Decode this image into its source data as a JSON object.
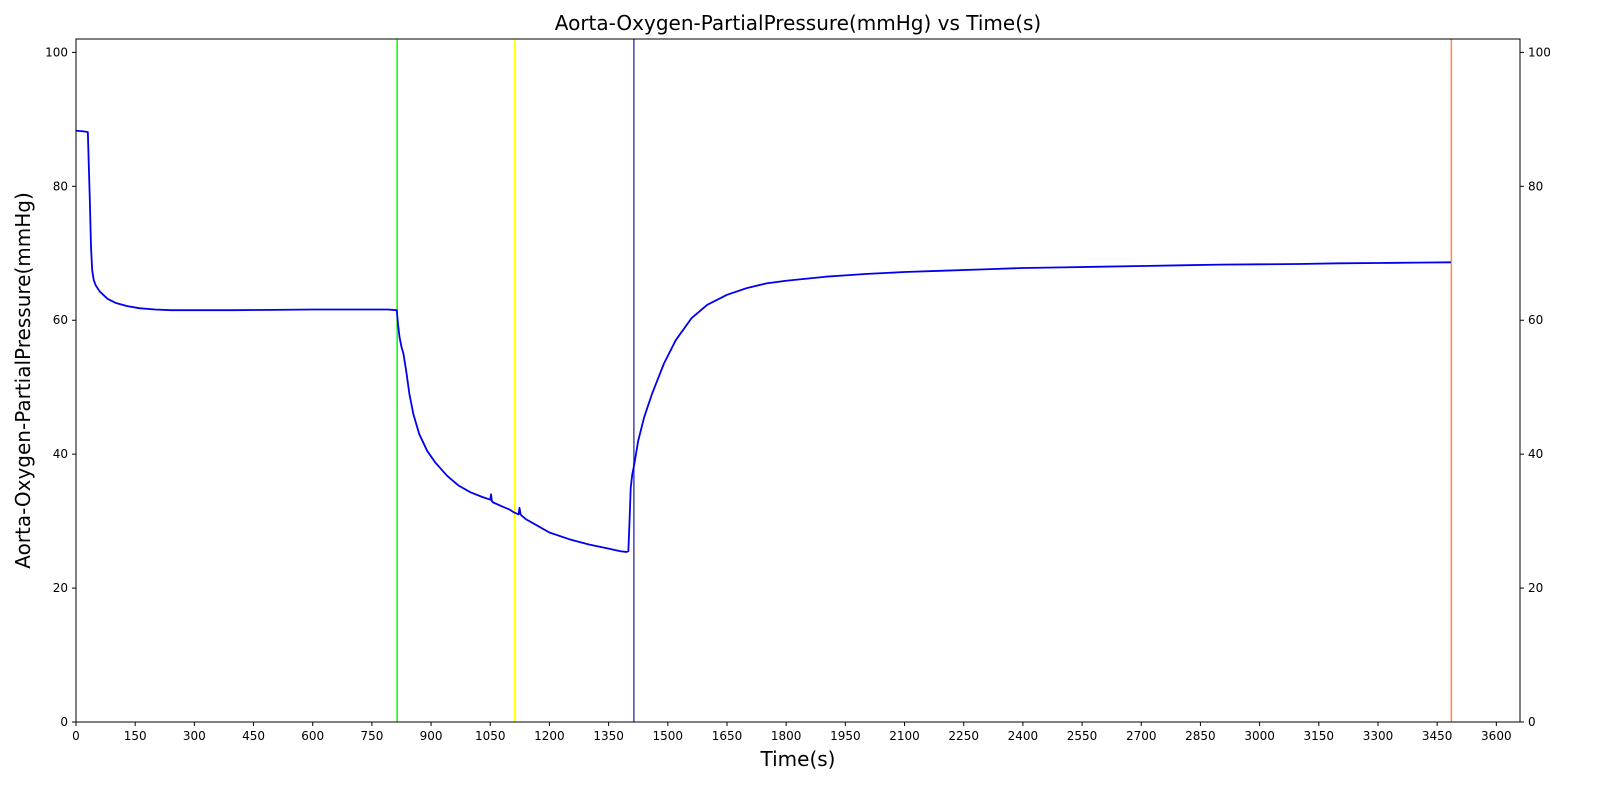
{
  "chart_data": {
    "type": "line",
    "title": "Aorta-Oxygen-PartialPressure(mmHg) vs Time(s)",
    "xlabel": "Time(s)",
    "ylabel": "Aorta-Oxygen-PartialPressure(mmHg)",
    "xlim": [
      0,
      3660
    ],
    "ylim": [
      0,
      102
    ],
    "x_ticks": [
      0,
      150,
      300,
      450,
      600,
      750,
      900,
      1050,
      1200,
      1350,
      1500,
      1650,
      1800,
      1950,
      2100,
      2250,
      2400,
      2550,
      2700,
      2850,
      3000,
      3150,
      3300,
      3450,
      3600
    ],
    "y_ticks": [
      0,
      20,
      40,
      60,
      80,
      100
    ],
    "right_y_ticks": [
      0,
      20,
      40,
      60,
      80,
      100
    ],
    "grid": false,
    "legend": "none",
    "series": [
      {
        "color": "#0000ee",
        "x": [
          0,
          20,
          30,
          32,
          35,
          38,
          41,
          45,
          50,
          60,
          80,
          100,
          130,
          160,
          200,
          240,
          300,
          400,
          500,
          600,
          700,
          790,
          813,
          816,
          820,
          825,
          830,
          838,
          845,
          855,
          870,
          890,
          910,
          940,
          970,
          1000,
          1030,
          1050,
          1052,
          1054,
          1057,
          1080,
          1100,
          1110,
          1122,
          1124,
          1127,
          1128,
          1140,
          1170,
          1200,
          1250,
          1300,
          1350,
          1380,
          1395,
          1400,
          1403,
          1406,
          1410,
          1415,
          1425,
          1440,
          1460,
          1490,
          1520,
          1560,
          1600,
          1650,
          1700,
          1750,
          1800,
          1850,
          1900,
          1950,
          2000,
          2100,
          2200,
          2300,
          2400,
          2500,
          2600,
          2700,
          2800,
          2900,
          3000,
          3100,
          3200,
          3300,
          3400,
          3485
        ],
        "y": [
          88.3,
          88.2,
          88.1,
          84,
          78,
          71,
          67.5,
          66,
          65.2,
          64.3,
          63.2,
          62.6,
          62.1,
          61.8,
          61.6,
          61.5,
          61.5,
          61.5,
          61.55,
          61.6,
          61.6,
          61.6,
          61.5,
          59.5,
          57.5,
          56,
          55,
          52,
          49,
          46,
          43,
          40.5,
          38.8,
          36.8,
          35.3,
          34.3,
          33.6,
          33.2,
          34.0,
          33.0,
          32.8,
          32.2,
          31.7,
          31.3,
          31.0,
          32.0,
          31.0,
          30.9,
          30.3,
          29.3,
          28.3,
          27.3,
          26.5,
          25.9,
          25.5,
          25.4,
          25.5,
          30,
          35,
          37,
          38.5,
          42,
          45.5,
          49,
          53.5,
          57,
          60.3,
          62.3,
          63.8,
          64.8,
          65.5,
          65.9,
          66.2,
          66.5,
          66.7,
          66.9,
          67.2,
          67.4,
          67.6,
          67.8,
          67.9,
          68.0,
          68.1,
          68.2,
          68.3,
          68.35,
          68.4,
          68.5,
          68.55,
          68.6,
          68.65
        ]
      }
    ],
    "vlines": [
      {
        "x": 814,
        "color": "#00ff00"
      },
      {
        "x": 1112,
        "color": "#ffff00"
      },
      {
        "x": 1414,
        "color": "#4444bb"
      },
      {
        "x": 3486,
        "color": "#ff8c40"
      }
    ]
  }
}
